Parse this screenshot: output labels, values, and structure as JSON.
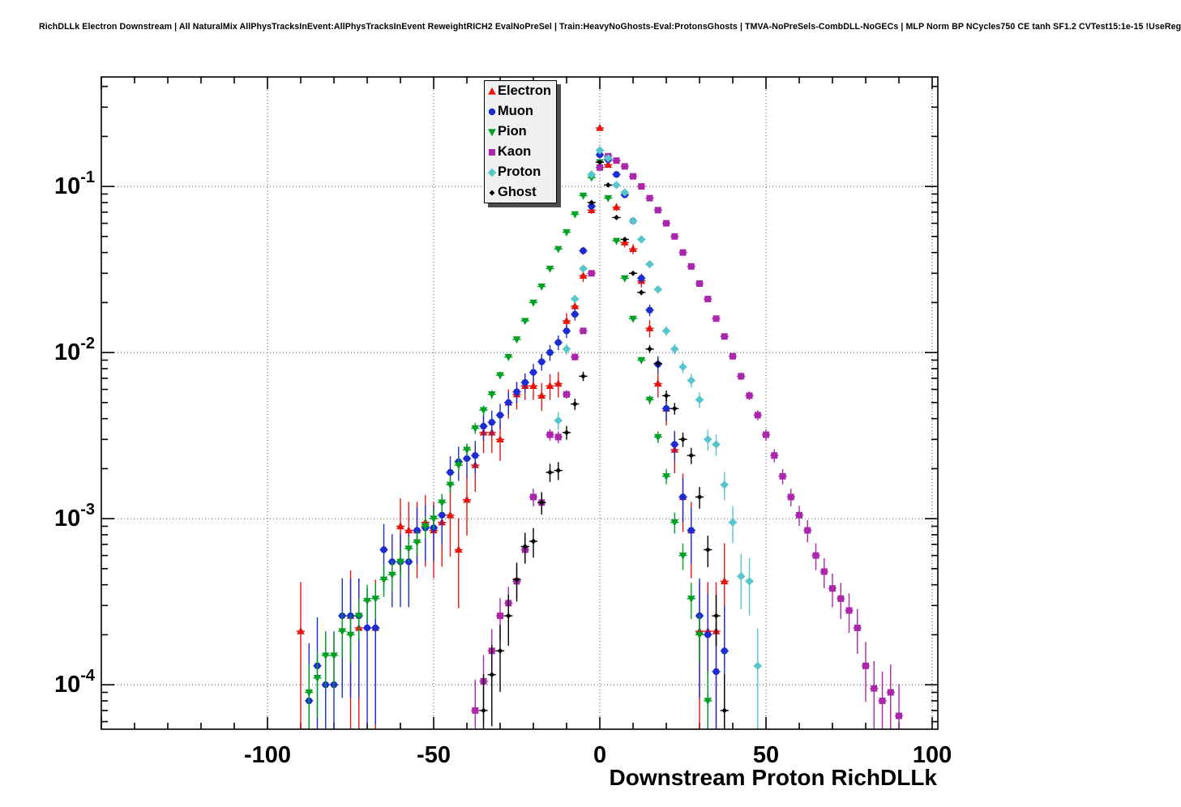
{
  "chart_data": {
    "type": "scatter",
    "title": "RichDLLk Electron Downstream | All NaturalMix AllPhysTracksInEvent:AllPhysTracksInEvent ReweightRICH2 EvalNoPreSel | Train:HeavyNoGhosts-Eval:ProtonsGhosts | TMVA-NoPreSels-CombDLL-NoGECs | MLP Norm BP NCycles750 CE tanh SF1.2 CVTest15:1e-15 !UseReg",
    "xlabel": "Downstream Proton RichDLLk",
    "ylabel": "",
    "x_scale": "linear",
    "y_scale": "log",
    "xlim": [
      -150,
      101.7
    ],
    "ylim": [
      5.4e-05,
      0.456
    ],
    "grid": "dotted-major",
    "legend_position": "top-center",
    "x_major_ticks": [
      {
        "value": -100,
        "label": "-100"
      },
      {
        "value": -50,
        "label": "-50"
      },
      {
        "value": 0,
        "label": "0"
      },
      {
        "value": 50,
        "label": "50"
      },
      {
        "value": 100,
        "label": "100"
      }
    ],
    "x_minor_step": 10,
    "y_major_ticks": [
      {
        "value": 0.1,
        "base": "10",
        "exp": "-1"
      },
      {
        "value": 0.01,
        "base": "10",
        "exp": "-2"
      },
      {
        "value": 0.001,
        "base": "10",
        "exp": "-3"
      },
      {
        "value": 0.0001,
        "base": "10",
        "exp": "-4"
      }
    ],
    "bin_half_width": 1.25,
    "series": [
      {
        "name": "Electron",
        "color": "#e8150f",
        "marker": "triangle-up",
        "err_scale": 0.0002,
        "points": [
          [
            -90,
            0.00021
          ],
          [
            -75,
            0.00026
          ],
          [
            -72.5,
            0.00022
          ],
          [
            -67.5,
            0.00022
          ],
          [
            -60,
            0.0009
          ],
          [
            -57.5,
            0.00085
          ],
          [
            -55,
            0.00085
          ],
          [
            -52.5,
            0.00095
          ],
          [
            -50,
            0.00085
          ],
          [
            -47.5,
            0.00095
          ],
          [
            -45,
            0.00105
          ],
          [
            -42.5,
            0.00065
          ],
          [
            -40,
            0.0013
          ],
          [
            -37.5,
            0.0021
          ],
          [
            -35,
            0.0033
          ],
          [
            -32.5,
            0.0033
          ],
          [
            -30,
            0.003
          ],
          [
            -27.5,
            0.005
          ],
          [
            -25,
            0.0056
          ],
          [
            -22.5,
            0.0063
          ],
          [
            -20,
            0.0063
          ],
          [
            -17.5,
            0.0055
          ],
          [
            -15,
            0.0063
          ],
          [
            -12.5,
            0.0065
          ],
          [
            -10,
            0.0155
          ],
          [
            -7.5,
            0.019
          ],
          [
            -5,
            0.029
          ],
          [
            -2.5,
            0.072
          ],
          [
            0,
            0.225
          ],
          [
            2.5,
            0.135
          ],
          [
            5,
            0.075
          ],
          [
            7.5,
            0.046
          ],
          [
            10,
            0.042
          ],
          [
            12.5,
            0.027
          ],
          [
            15,
            0.014
          ],
          [
            17.5,
            0.0065
          ],
          [
            20,
            0.0046
          ],
          [
            22.5,
            0.0026
          ],
          [
            25,
            0.00135
          ],
          [
            27.5,
            0.00085
          ],
          [
            30,
            0.00021
          ],
          [
            32.5,
            0.00021
          ],
          [
            35,
            0.00021
          ],
          [
            37.5,
            0.00042
          ]
        ]
      },
      {
        "name": "Muon",
        "color": "#1c2cd0",
        "marker": "circle",
        "err_scale": 0.00012,
        "points": [
          [
            -87.5,
            8e-05
          ],
          [
            -85,
            0.00013
          ],
          [
            -82.5,
            0.0001
          ],
          [
            -80,
            0.0001
          ],
          [
            -77.5,
            0.00026
          ],
          [
            -75,
            0.00026
          ],
          [
            -72.5,
            0.00026
          ],
          [
            -70,
            0.00022
          ],
          [
            -67.5,
            0.00022
          ],
          [
            -65,
            0.00065
          ],
          [
            -62.5,
            0.00055
          ],
          [
            -60,
            0.00055
          ],
          [
            -57.5,
            0.00055
          ],
          [
            -55,
            0.00085
          ],
          [
            -52.5,
            0.00088
          ],
          [
            -50,
            0.00088
          ],
          [
            -47.5,
            0.00105
          ],
          [
            -45,
            0.0019
          ],
          [
            -42.5,
            0.0022
          ],
          [
            -40,
            0.0023
          ],
          [
            -37.5,
            0.0024
          ],
          [
            -35,
            0.0036
          ],
          [
            -32.5,
            0.0038
          ],
          [
            -30,
            0.0042
          ],
          [
            -27.5,
            0.005
          ],
          [
            -25,
            0.0058
          ],
          [
            -22.5,
            0.0066
          ],
          [
            -20,
            0.0076
          ],
          [
            -17.5,
            0.0088
          ],
          [
            -15,
            0.01
          ],
          [
            -12.5,
            0.0115
          ],
          [
            -10,
            0.0135
          ],
          [
            -7.5,
            0.017
          ],
          [
            -5,
            0.041
          ],
          [
            -2.5,
            0.076
          ],
          [
            0,
            0.155
          ],
          [
            2.5,
            0.145
          ],
          [
            5,
            0.118
          ],
          [
            7.5,
            0.089
          ],
          [
            10,
            0.062
          ],
          [
            12.5,
            0.028
          ],
          [
            15,
            0.018
          ],
          [
            17.5,
            0.0085
          ],
          [
            20,
            0.0046
          ],
          [
            22.5,
            0.0028
          ],
          [
            25,
            0.00135
          ],
          [
            27.5,
            0.00085
          ],
          [
            30,
            0.00026
          ],
          [
            32.5,
            0.0002
          ],
          [
            35,
            0.00012
          ],
          [
            37.5,
            0.00016
          ]
        ]
      },
      {
        "name": "Pion",
        "color": "#00a023",
        "marker": "triangle-down",
        "err_scale": 2e-05,
        "points": [
          [
            -87.5,
            9e-05
          ],
          [
            -85,
            0.00011
          ],
          [
            -82.5,
            0.00015
          ],
          [
            -80,
            0.00015
          ],
          [
            -77.5,
            0.00021
          ],
          [
            -75,
            0.0002
          ],
          [
            -72.5,
            0.00026
          ],
          [
            -70,
            0.00032
          ],
          [
            -67.5,
            0.00033
          ],
          [
            -65,
            0.00043
          ],
          [
            -62.5,
            0.00046
          ],
          [
            -60,
            0.00055
          ],
          [
            -57.5,
            0.00066
          ],
          [
            -55,
            0.00072
          ],
          [
            -52.5,
            0.0009
          ],
          [
            -50,
            0.001
          ],
          [
            -47.5,
            0.00125
          ],
          [
            -45,
            0.0016
          ],
          [
            -42.5,
            0.0021
          ],
          [
            -40,
            0.0026
          ],
          [
            -37.5,
            0.0035
          ],
          [
            -35,
            0.0045
          ],
          [
            -32.5,
            0.0056
          ],
          [
            -30,
            0.0073
          ],
          [
            -27.5,
            0.0094
          ],
          [
            -25,
            0.012
          ],
          [
            -22.5,
            0.0155
          ],
          [
            -20,
            0.02
          ],
          [
            -17.5,
            0.025
          ],
          [
            -15,
            0.032
          ],
          [
            -12.5,
            0.042
          ],
          [
            -10,
            0.053
          ],
          [
            -7.5,
            0.068
          ],
          [
            -5,
            0.088
          ],
          [
            -2.5,
            0.113
          ],
          [
            0,
            0.14
          ],
          [
            2.5,
            0.085
          ],
          [
            5,
            0.047
          ],
          [
            7.5,
            0.028
          ],
          [
            10,
            0.016
          ],
          [
            12.5,
            0.009
          ],
          [
            15,
            0.0052
          ],
          [
            17.5,
            0.0031
          ],
          [
            20,
            0.0018
          ],
          [
            22.5,
            0.00095
          ],
          [
            25,
            0.0006
          ],
          [
            27.5,
            0.00033
          ],
          [
            30,
            0.0002
          ],
          [
            32.5,
            8e-05
          ]
        ]
      },
      {
        "name": "Kaon",
        "color": "#aa26aa",
        "marker": "square",
        "err_scale": 2e-05,
        "points": [
          [
            -37.5,
            7e-05
          ],
          [
            -35,
            0.000105
          ],
          [
            -32.5,
            0.00016
          ],
          [
            -30,
            0.00026
          ],
          [
            -27.5,
            0.00031
          ],
          [
            -25,
            0.00042
          ],
          [
            -22.5,
            0.00065
          ],
          [
            -20,
            0.00135
          ],
          [
            -17.5,
            0.00125
          ],
          [
            -15,
            0.0032
          ],
          [
            -12.5,
            0.0031
          ],
          [
            -10,
            0.0056
          ],
          [
            -7.5,
            0.0094
          ],
          [
            -5,
            0.0135
          ],
          [
            -2.5,
            0.03
          ],
          [
            0,
            0.13
          ],
          [
            2.5,
            0.152
          ],
          [
            5,
            0.143
          ],
          [
            7.5,
            0.132
          ],
          [
            10,
            0.115
          ],
          [
            12.5,
            0.1
          ],
          [
            15,
            0.085
          ],
          [
            17.5,
            0.072
          ],
          [
            20,
            0.06
          ],
          [
            22.5,
            0.05
          ],
          [
            25,
            0.04
          ],
          [
            27.5,
            0.033
          ],
          [
            30,
            0.026
          ],
          [
            32.5,
            0.021
          ],
          [
            35,
            0.016
          ],
          [
            37.5,
            0.0125
          ],
          [
            40,
            0.0095
          ],
          [
            42.5,
            0.0072
          ],
          [
            45,
            0.0055
          ],
          [
            47.5,
            0.0042
          ],
          [
            50,
            0.0032
          ],
          [
            52.5,
            0.0024
          ],
          [
            55,
            0.0018
          ],
          [
            57.5,
            0.00135
          ],
          [
            60,
            0.00105
          ],
          [
            62.5,
            0.00085
          ],
          [
            65,
            0.0006
          ],
          [
            67.5,
            0.00048
          ],
          [
            70,
            0.00038
          ],
          [
            72.5,
            0.00033
          ],
          [
            75,
            0.00028
          ],
          [
            77.5,
            0.00022
          ],
          [
            80,
            0.00013
          ],
          [
            82.5,
            9.5e-05
          ],
          [
            85,
            8e-05
          ],
          [
            87.5,
            9e-05
          ],
          [
            90,
            6.5e-05
          ]
        ]
      },
      {
        "name": "Proton",
        "color": "#57c5cc",
        "marker": "diamond",
        "err_scale": 6e-05,
        "points": [
          [
            -12.5,
            0.0039
          ],
          [
            -10,
            0.0105
          ],
          [
            -7.5,
            0.021
          ],
          [
            -5,
            0.032
          ],
          [
            -2.5,
            0.118
          ],
          [
            0,
            0.165
          ],
          [
            2.5,
            0.148
          ],
          [
            5,
            0.102
          ],
          [
            7.5,
            0.092
          ],
          [
            10,
            0.062
          ],
          [
            12.5,
            0.048
          ],
          [
            15,
            0.034
          ],
          [
            17.5,
            0.024
          ],
          [
            20,
            0.0135
          ],
          [
            22.5,
            0.0105
          ],
          [
            25,
            0.0082
          ],
          [
            27.5,
            0.0068
          ],
          [
            30,
            0.0052
          ],
          [
            32.5,
            0.003
          ],
          [
            35,
            0.0028
          ],
          [
            37.5,
            0.0016
          ],
          [
            40,
            0.00095
          ],
          [
            42.5,
            0.00045
          ],
          [
            45,
            0.00042
          ],
          [
            47.5,
            0.00013
          ]
        ]
      },
      {
        "name": "Ghost",
        "color": "#000000",
        "marker": "diamond-small",
        "err_scale": 3e-05,
        "points": [
          [
            -35,
            7e-05
          ],
          [
            -32.5,
            0.000115
          ],
          [
            -30,
            0.00016
          ],
          [
            -27.5,
            0.00026
          ],
          [
            -25,
            0.00043
          ],
          [
            -22.5,
            0.00068
          ],
          [
            -20,
            0.00073
          ],
          [
            -17.5,
            0.00125
          ],
          [
            -15,
            0.0019
          ],
          [
            -12.5,
            0.00195
          ],
          [
            -10,
            0.0033
          ],
          [
            -7.5,
            0.0049
          ],
          [
            -5,
            0.0072
          ],
          [
            -2.5,
            0.08
          ],
          [
            0,
            0.14
          ],
          [
            2.5,
            0.102
          ],
          [
            5,
            0.065
          ],
          [
            7.5,
            0.048
          ],
          [
            10,
            0.03
          ],
          [
            12.5,
            0.023
          ],
          [
            15,
            0.0105
          ],
          [
            17.5,
            0.0086
          ],
          [
            20,
            0.0055
          ],
          [
            22.5,
            0.0046
          ],
          [
            25,
            0.003
          ],
          [
            27.5,
            0.0024
          ],
          [
            30,
            0.00135
          ],
          [
            32.5,
            0.00065
          ],
          [
            35,
            0.00026
          ],
          [
            37.5,
            7e-05
          ]
        ]
      }
    ]
  }
}
